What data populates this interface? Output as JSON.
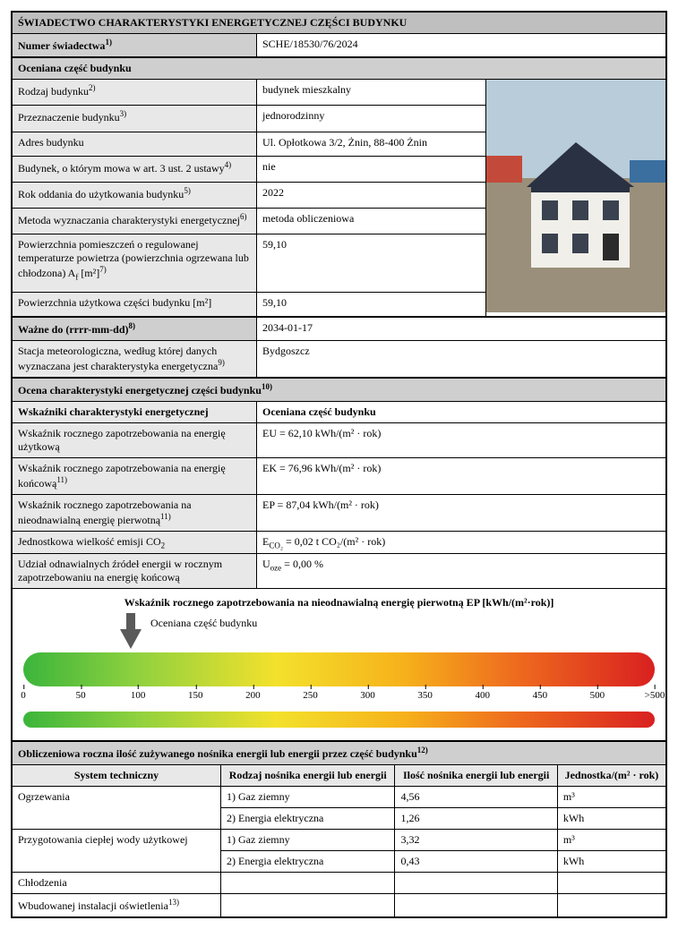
{
  "header": {
    "title": "ŚWIADECTWO CHARAKTERYSTYKI ENERGETYCZNEJ CZĘŚCI BUDYNKU",
    "cert_label": "Numer świadectwa",
    "cert_sup": "1)",
    "cert_value": "SCHE/18530/76/2024"
  },
  "section1": {
    "title": "Oceniana część budynku",
    "rows": [
      {
        "label": "Rodzaj budynku",
        "sup": "2)",
        "value": "budynek mieszkalny"
      },
      {
        "label": "Przeznaczenie budynku",
        "sup": "3)",
        "value": "jednorodzinny"
      },
      {
        "label": "Adres budynku",
        "sup": "",
        "value": "Ul. Opłotkowa 3/2, Żnin, 88-400 Żnin"
      },
      {
        "label": "Budynek, o którym mowa w art. 3 ust. 2 ustawy",
        "sup": "4)",
        "value": "nie"
      },
      {
        "label": "Rok oddania do użytkowania budynku",
        "sup": "5)",
        "value": "2022"
      },
      {
        "label": "Metoda wyznaczania charakterystyki energetycznej",
        "sup": "6)",
        "value": "metoda obliczeniowa"
      },
      {
        "label": "Powierzchnia pomieszczeń o regulowanej temperaturze powietrza (powierzchnia ogrzewana lub chłodzona) A",
        "sub": "f",
        "unit": " [m²]",
        "sup": "7)",
        "value": "59,10"
      },
      {
        "label": "Powierzchnia użytkowa części budynku [m²]",
        "sup": "",
        "value": "59,10"
      }
    ]
  },
  "valid": {
    "label": "Ważne do (rrrr-mm-dd)",
    "sup": "8)",
    "value": "2034-01-17"
  },
  "meteo": {
    "label": "Stacja meteorologiczna, według której danych wyznaczana jest charakterystyka energetyczna",
    "sup": "9)",
    "value": "Bydgoszcz"
  },
  "section2": {
    "title": "Ocena charakterystyki energetycznej części budynku",
    "title_sup": "10)",
    "col1": "Wskaźniki charakterystyki energetycznej",
    "col2": "Oceniana część budynku",
    "rows": [
      {
        "label": "Wskaźnik rocznego zapotrzebowania na energię użytkową",
        "value": "EU = 62,10 kWh/(m² · rok)"
      },
      {
        "label": "Wskaźnik rocznego zapotrzebowania na energię końcową",
        "sup": "11)",
        "value": "EK = 76,96 kWh/(m² · rok)"
      },
      {
        "label": "Wskaźnik rocznego zapotrzebowania na nieodnawialną energię pierwotną",
        "sup": "11)",
        "value": "EP = 87,04 kWh/(m² · rok)"
      },
      {
        "label": "Jednostkowa wielkość emisji CO",
        "sub": "2",
        "value_html": "E<sub>CO₂</sub> = 0,02 t CO₂/(m² · rok)"
      },
      {
        "label": "Udział odnawialnych źródeł energii w rocznym zapotrzebowaniu na energię końcową",
        "value_html": "U<sub>oze</sub> = 0,00 %"
      }
    ]
  },
  "chart": {
    "title": "Wskaźnik rocznego zapotrzebowania na nieodnawialną energię pierwotną EP [kWh/(m²·rok)]",
    "arrow_label": "Oceniana część budynku",
    "ep_value": 87.04,
    "scale_min": 0,
    "scale_max": 520,
    "ticks": [
      "0",
      "50",
      "100",
      "150",
      "200",
      "250",
      "300",
      "350",
      "400",
      "450",
      "500",
      ">500"
    ],
    "gradient_colors": [
      "#3bb53b",
      "#8fd13f",
      "#f3e12c",
      "#f6b21b",
      "#ee6b1e",
      "#d92020"
    ]
  },
  "section3": {
    "title": "Obliczeniowa roczna ilość zużywanego nośnika energii lub energii przez część budynku",
    "title_sup": "12)",
    "headers": [
      "System techniczny",
      "Rodzaj nośnika energii lub energii",
      "Ilość nośnika energii lub energii",
      "Jednostka/(m² · rok)"
    ],
    "rows": [
      {
        "system": "Ogrzewania",
        "carrier": "1) Gaz ziemny",
        "amount": "4,56",
        "unit": "m³"
      },
      {
        "system": "",
        "carrier": "2) Energia elektryczna",
        "amount": "1,26",
        "unit": "kWh"
      },
      {
        "system": "Przygotowania ciepłej wody użytkowej",
        "carrier": "1) Gaz ziemny",
        "amount": "3,32",
        "unit": "m³"
      },
      {
        "system": "",
        "carrier": "2) Energia elektryczna",
        "amount": "0,43",
        "unit": "kWh"
      },
      {
        "system": "Chłodzenia",
        "carrier": "",
        "amount": "",
        "unit": ""
      },
      {
        "system": "Wbudowanej instalacji oświetlenia",
        "system_sup": "13)",
        "carrier": "",
        "amount": "",
        "unit": ""
      }
    ]
  },
  "photo": {
    "sky": "#b8cdd9",
    "wall": "#f0efe9",
    "roof": "#2a3142",
    "ground": "#9a8f7a",
    "accent1": "#c34a3a",
    "accent2": "#3a6fa0"
  }
}
